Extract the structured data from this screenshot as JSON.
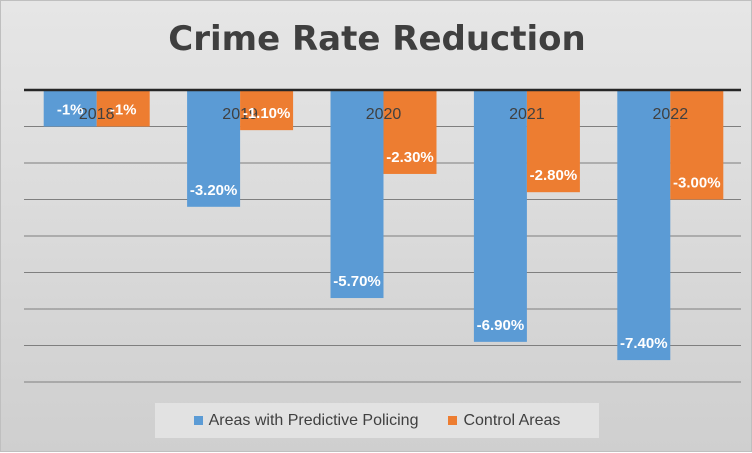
{
  "chart_data": {
    "type": "bar",
    "title": "Crime Rate Reduction",
    "categories": [
      "2018",
      "2019",
      "2020",
      "2021",
      "2022"
    ],
    "series": [
      {
        "name": "Areas with Predictive Policing",
        "values": [
          -1.0,
          -3.2,
          -5.7,
          -6.9,
          -7.4
        ],
        "labels": [
          "-1%",
          "-3.20%",
          "-5.70%",
          "-6.90%",
          "-7.40%"
        ],
        "color": "#5b9bd5"
      },
      {
        "name": "Control Areas",
        "values": [
          -1.0,
          -1.1,
          -2.3,
          -2.8,
          -3.0
        ],
        "labels": [
          "-1%",
          "-1.10%",
          "-2.30%",
          "-2.80%",
          "-3.00%"
        ],
        "color": "#ed7d31"
      }
    ],
    "ylim": [
      -8,
      0
    ],
    "grid": true,
    "tick_labels_visible": false,
    "legend_position": "bottom",
    "xlabel": "",
    "ylabel": ""
  }
}
